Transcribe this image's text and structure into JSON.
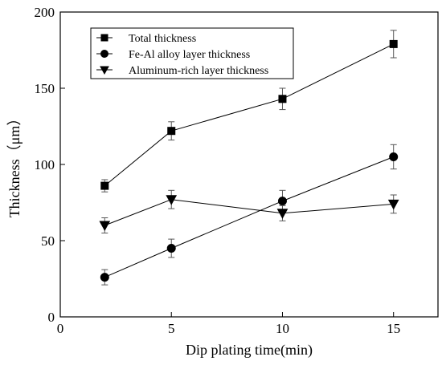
{
  "chart_data": {
    "type": "line",
    "xlabel": "Dip plating time(min)",
    "ylabel": "Thickness（μm）",
    "xlim": [
      0,
      17
    ],
    "ylim": [
      0,
      200
    ],
    "x_ticks": [
      "0",
      "5",
      "10",
      "15"
    ],
    "y_ticks": [
      "0",
      "50",
      "100",
      "150",
      "200"
    ],
    "grid": false,
    "legend_position": "top-left",
    "x": [
      2,
      5,
      10,
      15
    ],
    "series": [
      {
        "name": "Total thickness",
        "marker": "square",
        "values": [
          86,
          122,
          143,
          179
        ],
        "errors": [
          4,
          6,
          7,
          9
        ]
      },
      {
        "name": "Fe-Al alloy layer thickness",
        "marker": "circle",
        "values": [
          26,
          45,
          76,
          105
        ],
        "errors": [
          5,
          6,
          7,
          8
        ]
      },
      {
        "name": "Aluminum-rich layer thickness",
        "marker": "triangle-down",
        "values": [
          60,
          77,
          68,
          74
        ],
        "errors": [
          5,
          6,
          5,
          6
        ]
      }
    ]
  }
}
